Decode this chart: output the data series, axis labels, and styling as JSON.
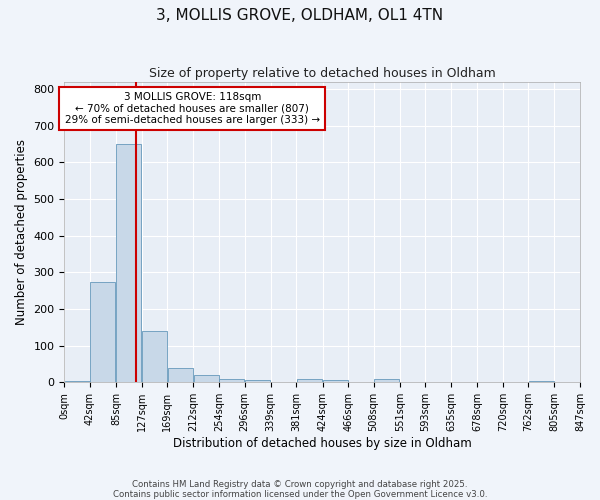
{
  "title": "3, MOLLIS GROVE, OLDHAM, OL1 4TN",
  "subtitle": "Size of property relative to detached houses in Oldham",
  "xlabel": "Distribution of detached houses by size in Oldham",
  "ylabel": "Number of detached properties",
  "bar_color": "#c8d8e8",
  "bar_edge_color": "#6699bb",
  "background_color": "#f0f4fa",
  "ax_background_color": "#e8eef6",
  "grid_color": "#ffffff",
  "bin_edges": [
    0,
    42,
    85,
    127,
    169,
    212,
    254,
    296,
    339,
    381,
    424,
    466,
    508,
    551,
    593,
    635,
    678,
    720,
    762,
    805,
    847
  ],
  "bar_heights": [
    5,
    275,
    650,
    140,
    38,
    20,
    10,
    7,
    0,
    8,
    7,
    0,
    8,
    0,
    0,
    0,
    0,
    0,
    5,
    0
  ],
  "tick_labels": [
    "0sqm",
    "42sqm",
    "85sqm",
    "127sqm",
    "169sqm",
    "212sqm",
    "254sqm",
    "296sqm",
    "339sqm",
    "381sqm",
    "424sqm",
    "466sqm",
    "508sqm",
    "551sqm",
    "593sqm",
    "635sqm",
    "678sqm",
    "720sqm",
    "762sqm",
    "805sqm",
    "847sqm"
  ],
  "property_line_x": 118,
  "annotation_title": "3 MOLLIS GROVE: 118sqm",
  "annotation_line1": "← 70% of detached houses are smaller (807)",
  "annotation_line2": "29% of semi-detached houses are larger (333) →",
  "annotation_box_facecolor": "#ffffff",
  "annotation_box_edgecolor": "#cc0000",
  "vline_color": "#cc0000",
  "ylim": [
    0,
    820
  ],
  "yticks": [
    0,
    100,
    200,
    300,
    400,
    500,
    600,
    700,
    800
  ],
  "footer_line1": "Contains HM Land Registry data © Crown copyright and database right 2025.",
  "footer_line2": "Contains public sector information licensed under the Open Government Licence v3.0."
}
